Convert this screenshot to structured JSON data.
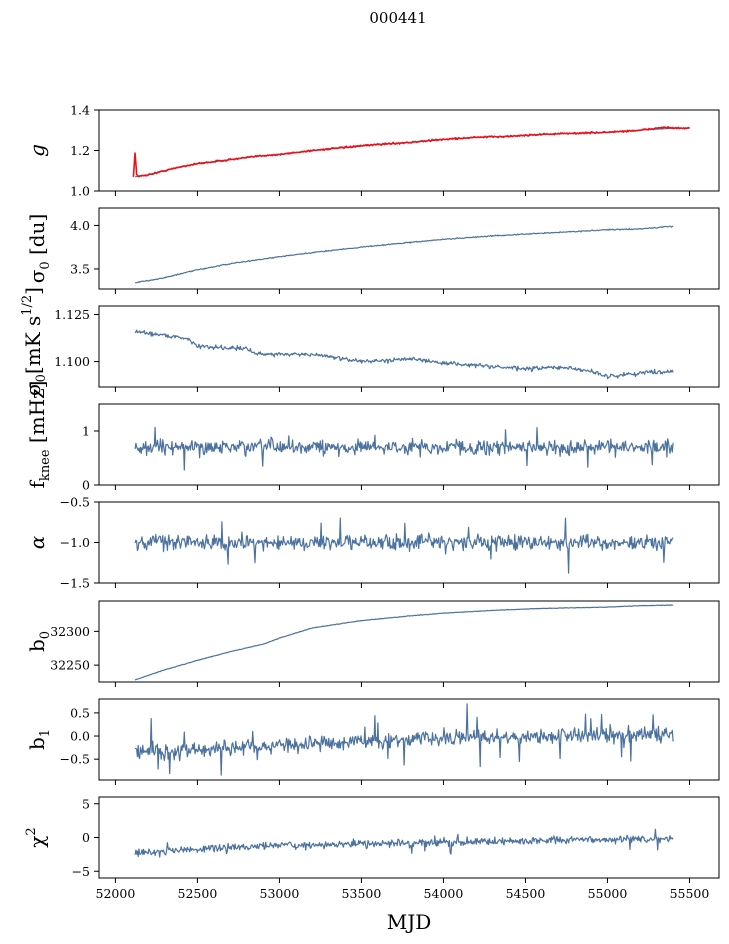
{
  "figure": {
    "title": "000441"
  },
  "chart_data": {
    "type": "line",
    "shared_x": {
      "label": "MJD",
      "range": [
        51900,
        55680
      ],
      "ticks": [
        52000,
        52500,
        53000,
        53500,
        54000,
        54500,
        55000,
        55500
      ],
      "tick_labels": [
        "52000",
        "52500",
        "53000",
        "53500",
        "54000",
        "54500",
        "55000",
        "55500"
      ]
    },
    "line_color": "#4c72a0",
    "panels": [
      {
        "id": "g",
        "ylabel": "g",
        "ylim": [
          1.0,
          1.4
        ],
        "yticks": [
          1.0,
          1.2,
          1.4
        ],
        "ytick_labels": [
          "1.0",
          "1.2",
          "1.4"
        ],
        "series": [
          {
            "color": "#4c72a0",
            "width": 1.2,
            "x": [
              52120,
              52200,
              52300,
              52400,
              52500,
              52700,
              52900,
              53000,
              53200,
              53400,
              53600,
              53800,
              54000,
              54200,
              54400,
              54600,
              54800,
              55000,
              55200,
              55400,
              55500
            ],
            "y": [
              1.07,
              1.08,
              1.1,
              1.12,
              1.135,
              1.155,
              1.175,
              1.18,
              1.2,
              1.215,
              1.23,
              1.24,
              1.255,
              1.265,
              1.27,
              1.28,
              1.285,
              1.29,
              1.3,
              1.31,
              1.31
            ]
          },
          {
            "color": "#e8121a",
            "width": 1.6,
            "noise": 0.004,
            "x": [
              52110,
              52120,
              52130,
              52140,
              52160,
              52200,
              52300,
              52400,
              52500,
              52700,
              52900,
              53000,
              53200,
              53400,
              53600,
              53800,
              54000,
              54200,
              54400,
              54600,
              54800,
              55000,
              55200,
              55350,
              55400,
              55500
            ],
            "y": [
              1.07,
              1.19,
              1.08,
              1.07,
              1.075,
              1.08,
              1.1,
              1.12,
              1.135,
              1.155,
              1.175,
              1.18,
              1.2,
              1.215,
              1.23,
              1.24,
              1.255,
              1.265,
              1.27,
              1.28,
              1.285,
              1.29,
              1.3,
              1.315,
              1.31,
              1.31
            ]
          }
        ]
      },
      {
        "id": "sigma0-du",
        "ylabel": "σ₀ [du]",
        "ylim": [
          3.27,
          4.2
        ],
        "yticks": [
          3.5,
          4.0
        ],
        "ytick_labels": [
          "3.5",
          "4.0"
        ],
        "series": [
          {
            "color": "#4c72a0",
            "width": 1.2,
            "noise": 0.006,
            "x": [
              52120,
              52300,
              52500,
              52700,
              53000,
              53300,
              53600,
              54000,
              54300,
              54600,
              55000,
              55200,
              55400
            ],
            "y": [
              3.34,
              3.4,
              3.49,
              3.56,
              3.64,
              3.71,
              3.77,
              3.84,
              3.88,
              3.91,
              3.95,
              3.96,
              3.99
            ]
          }
        ]
      },
      {
        "id": "sigma0-mk",
        "ylabel": "σ₀[mK s1/2]",
        "ylim": [
          1.0865,
          1.1295
        ],
        "yticks": [
          1.1,
          1.125
        ],
        "ytick_labels": [
          "1.100",
          "1.125"
        ],
        "series": [
          {
            "color": "#4c72a0",
            "width": 1.2,
            "noise": 0.0011,
            "x": [
              52120,
              52300,
              52450,
              52500,
              52800,
              52850,
              53100,
              53300,
              53400,
              53600,
              53800,
              53900,
              54200,
              54500,
              54700,
              54900,
              55000,
              55100,
              55200,
              55400
            ],
            "y": [
              1.116,
              1.114,
              1.112,
              1.108,
              1.107,
              1.104,
              1.104,
              1.103,
              1.101,
              1.1,
              1.102,
              1.1,
              1.098,
              1.096,
              1.097,
              1.095,
              1.092,
              1.093,
              1.094,
              1.095
            ]
          }
        ]
      },
      {
        "id": "fknee",
        "ylabel": "fknee [mHz]",
        "ylim": [
          0,
          1.5
        ],
        "yticks": [
          0,
          1
        ],
        "ytick_labels": [
          "0",
          "1"
        ],
        "series": [
          {
            "color": "#4c72a0",
            "width": 1.2,
            "noise": 0.13,
            "spikes": 0.25,
            "x": [
              52120,
              55400
            ],
            "y": [
              0.7,
              0.7
            ]
          }
        ]
      },
      {
        "id": "alpha",
        "ylabel": "α",
        "ylim": [
          -1.5,
          -0.5
        ],
        "yticks": [
          -1.5,
          -1.0,
          -0.5
        ],
        "ytick_labels": [
          "−1.5",
          "−1.0",
          "−0.5"
        ],
        "series": [
          {
            "color": "#4c72a0",
            "width": 1.2,
            "noise": 0.09,
            "spikes": 0.22,
            "x": [
              52120,
              55400
            ],
            "y": [
              -1.0,
              -1.0
            ]
          }
        ]
      },
      {
        "id": "b0",
        "ylabel": "b0",
        "ylim": [
          32225,
          32345
        ],
        "yticks": [
          32250,
          32300
        ],
        "ytick_labels": [
          "32250",
          "32300"
        ],
        "series": [
          {
            "color": "#4c72a0",
            "width": 1.2,
            "noise": 0.4,
            "x": [
              52120,
              52300,
              52500,
              52700,
              52900,
              53000,
              53200,
              53500,
              53800,
              54000,
              54300,
              54600,
              55000,
              55200,
              55400
            ],
            "y": [
              32228,
              32243,
              32257,
              32270,
              32281,
              32290,
              32305,
              32316,
              32323,
              32327,
              32331,
              32334,
              32336,
              32338,
              32339
            ]
          }
        ]
      },
      {
        "id": "b1",
        "ylabel": "b1",
        "ylim": [
          -0.95,
          0.8
        ],
        "yticks": [
          -0.5,
          0.0,
          0.5
        ],
        "ytick_labels": [
          "−0.5",
          "0.0",
          "0.5"
        ],
        "series": [
          {
            "color": "#4c72a0",
            "width": 1.2,
            "noise": 0.15,
            "spikes": 0.4,
            "x": [
              52120,
              52500,
              53000,
              53500,
              54000,
              54500,
              55000,
              55400
            ],
            "y": [
              -0.35,
              -0.3,
              -0.2,
              -0.12,
              -0.05,
              0.0,
              0.02,
              0.05
            ]
          }
        ]
      },
      {
        "id": "chi2",
        "ylabel": "χ2",
        "ylim": [
          -6,
          6
        ],
        "yticks": [
          -5,
          0,
          5
        ],
        "ytick_labels": [
          "−5",
          "0",
          "5"
        ],
        "series": [
          {
            "color": "#4c72a0",
            "width": 1.2,
            "noise": 0.55,
            "spikes": 1.3,
            "x": [
              52120,
              52300,
              52600,
              53000,
              53500,
              54000,
              54500,
              55000,
              55400
            ],
            "y": [
              -2.3,
              -2.0,
              -1.6,
              -1.2,
              -0.9,
              -0.7,
              -0.5,
              -0.3,
              -0.2
            ]
          }
        ]
      }
    ]
  }
}
